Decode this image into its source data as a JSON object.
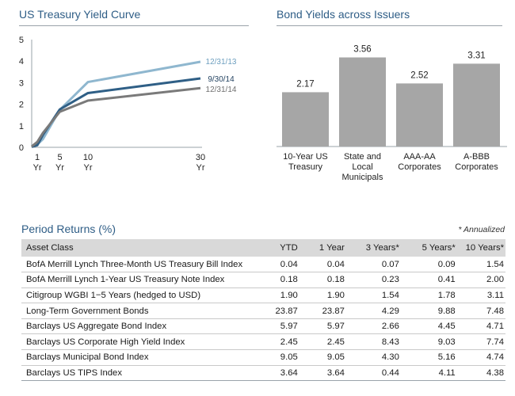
{
  "yield_panel": {
    "title": "US Treasury Yield Curve"
  },
  "issuer_panel": {
    "title": "Bond Yields across Issuers"
  },
  "returns": {
    "title": "Period Returns (%)",
    "note": "* Annualized",
    "columns": [
      "Asset Class",
      "YTD",
      "1 Year",
      "3 Years*",
      "5 Years*",
      "10 Years*"
    ],
    "rows": [
      [
        "BofA Merrill Lynch Three-Month US Treasury Bill Index",
        "0.04",
        "0.04",
        "0.07",
        "0.09",
        "1.54"
      ],
      [
        "BofA Merrill Lynch 1-Year US Treasury Note Index",
        "0.18",
        "0.18",
        "0.23",
        "0.41",
        "2.00"
      ],
      [
        "Citigroup WGBI 1−5 Years (hedged to USD)",
        "1.90",
        "1.90",
        "1.54",
        "1.78",
        "3.11"
      ],
      [
        "Long-Term Government Bonds",
        "23.87",
        "23.87",
        "4.29",
        "9.88",
        "7.48"
      ],
      [
        "Barclays US Aggregate Bond Index",
        "5.97",
        "5.97",
        "2.66",
        "4.45",
        "4.71"
      ],
      [
        "Barclays US Corporate High Yield Index",
        "2.45",
        "2.45",
        "8.43",
        "9.03",
        "7.74"
      ],
      [
        "Barclays Municipal Bond Index",
        "9.05",
        "9.05",
        "4.30",
        "5.16",
        "4.74"
      ],
      [
        "Barclays US TIPS Index",
        "3.64",
        "3.64",
        "0.44",
        "4.11",
        "4.38"
      ]
    ]
  },
  "chart_data": [
    {
      "type": "line",
      "title": "US Treasury Yield Curve",
      "x": [
        0,
        1,
        2,
        5,
        10,
        30
      ],
      "x_ticks": [
        {
          "value": 1,
          "label": [
            "1",
            "Yr"
          ]
        },
        {
          "value": 5,
          "label": [
            "5",
            "Yr"
          ]
        },
        {
          "value": 10,
          "label": [
            "10",
            "Yr"
          ]
        },
        {
          "value": 30,
          "label": [
            "30",
            "Yr"
          ]
        }
      ],
      "ylim": [
        0,
        5
      ],
      "y_ticks": [
        0,
        1,
        2,
        3,
        4,
        5
      ],
      "grid": false,
      "series": [
        {
          "name": "12/31/13",
          "color": "#8fb7cf",
          "values": [
            0.07,
            0.13,
            0.38,
            1.74,
            3.03,
            3.97
          ]
        },
        {
          "name": "9/30/14",
          "color": "#2f5f86",
          "values": [
            0.02,
            0.1,
            0.58,
            1.76,
            2.52,
            3.2
          ]
        },
        {
          "name": "12/31/14",
          "color": "#7a7a7a",
          "values": [
            0.04,
            0.25,
            0.67,
            1.65,
            2.17,
            2.75
          ]
        }
      ]
    },
    {
      "type": "bar",
      "title": "Bond Yields across Issuers",
      "categories": [
        [
          "10-Year US",
          "Treasury"
        ],
        [
          "State and",
          "Local",
          "Municipals"
        ],
        [
          "AAA-AA",
          "Corporates"
        ],
        [
          "A-BBB",
          "Corporates"
        ]
      ],
      "values": [
        2.17,
        3.56,
        2.52,
        3.31
      ],
      "ylim": [
        0,
        4.2
      ],
      "bar_color": "#a6a6a6",
      "grid": false
    }
  ]
}
